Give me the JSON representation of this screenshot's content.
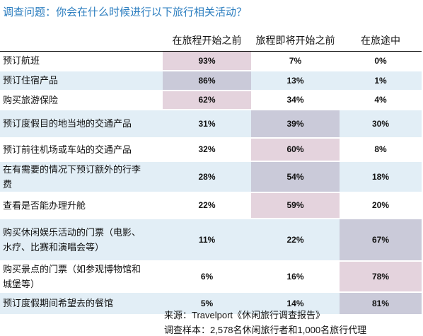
{
  "title": "调查问题：你会在什么时候进行以下旅行相关活动？",
  "table": {
    "columns": [
      "在旅程开始之前",
      "旅程即将开始之前",
      "在旅途中"
    ],
    "rows": [
      {
        "label": "预订航班",
        "values": [
          "93%",
          "7%",
          "0%"
        ]
      },
      {
        "label": "预订住宿产品",
        "values": [
          "86%",
          "13%",
          "1%"
        ]
      },
      {
        "label": "购买旅游保险",
        "values": [
          "62%",
          "34%",
          "4%"
        ]
      },
      {
        "label": "预订度假目的地当地的交通产品",
        "values": [
          "31%",
          "39%",
          "30%"
        ]
      },
      {
        "label": "预订前往机场或车站的交通产品",
        "values": [
          "32%",
          "60%",
          "8%"
        ]
      },
      {
        "label": "在有需要的情况下预订额外的行李费",
        "values": [
          "28%",
          "54%",
          "18%"
        ]
      },
      {
        "label": "查看是否能办理升舱",
        "values": [
          "22%",
          "59%",
          "20%"
        ]
      },
      {
        "label": "购买休闲娱乐活动的门票（电影、水疗、比赛和演唱会等）",
        "values": [
          "11%",
          "22%",
          "67%"
        ]
      },
      {
        "label": "购买景点的门票（如参观博物馆和城堡等）",
        "values": [
          "6%",
          "16%",
          "78%"
        ]
      },
      {
        "label": "预订度假期间希望去的餐馆",
        "values": [
          "5%",
          "14%",
          "81%"
        ]
      }
    ]
  },
  "footer": {
    "source": "来源：Travelport《休闲旅行调查报告》",
    "sample": "调查样本：2,578名休闲旅行者和1,000名旅行代理"
  }
}
